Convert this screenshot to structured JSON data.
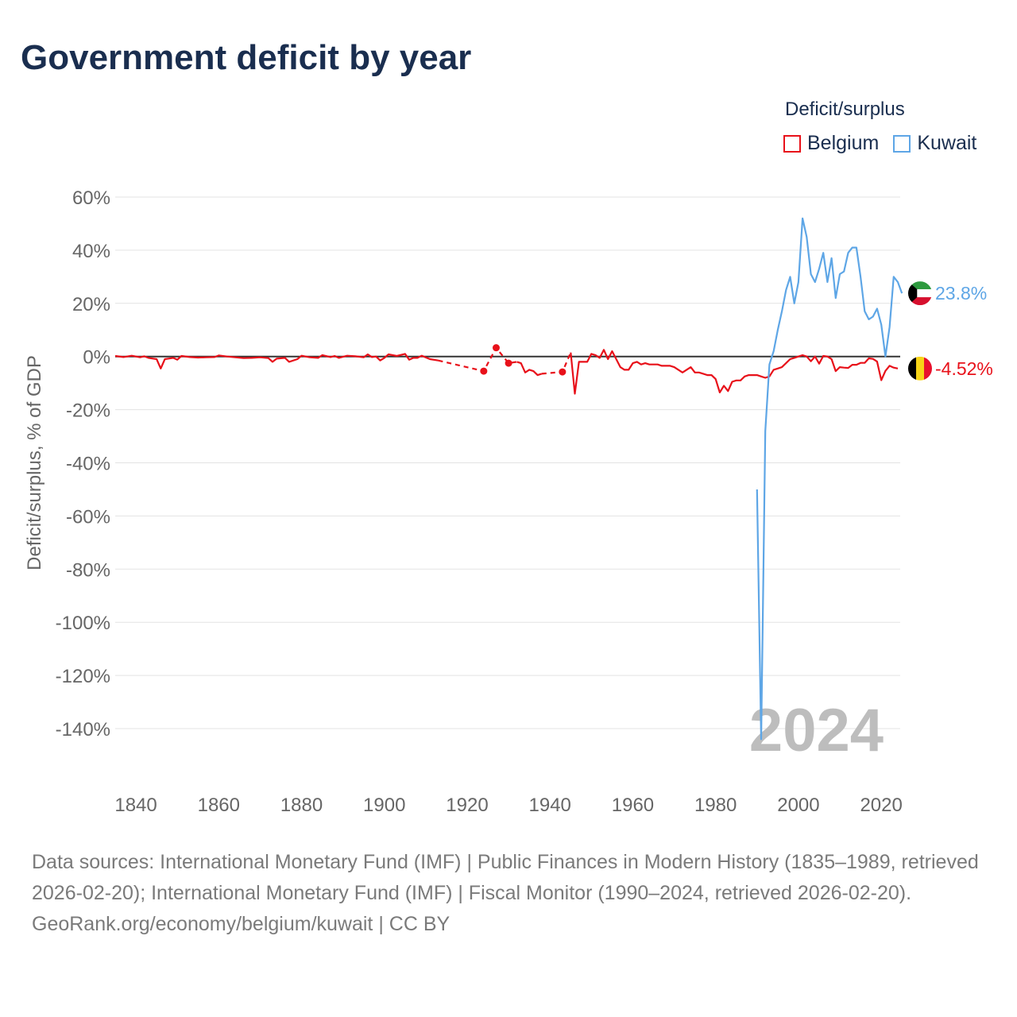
{
  "title": "Government deficit by year",
  "legend": {
    "title": "Deficit/surplus",
    "items": [
      {
        "label": "Belgium",
        "color": "#e8111a"
      },
      {
        "label": "Kuwait",
        "color": "#5ea6e6"
      }
    ]
  },
  "year_label": "2024",
  "footer": {
    "sources": "Data sources: International Monetary Fund (IMF) | Public Finances in Modern History (1835–1989, retrieved 2026-02-20); International Monetary Fund (IMF) | Fiscal Monitor (1990–2024, retrieved 2026-02-20).",
    "credit": "GeoRank.org/economy/belgium/kuwait | CC BY"
  },
  "chart_data": {
    "type": "line",
    "title": "Government deficit by year",
    "xlabel": "",
    "ylabel": "Deficit/surplus, % of GDP",
    "xlim": [
      1835,
      2024
    ],
    "ylim": [
      -150,
      60
    ],
    "x_ticks": [
      1840,
      1860,
      1880,
      1900,
      1920,
      1940,
      1960,
      1980,
      2000,
      2020
    ],
    "y_ticks": [
      60,
      40,
      20,
      0,
      -20,
      -40,
      -60,
      -80,
      -100,
      -120,
      -140
    ],
    "y_tick_labels": [
      "60%",
      "40%",
      "20%",
      "0%",
      "-20%",
      "-40%",
      "-60%",
      "-80%",
      "-100%",
      "-120%",
      "-140%"
    ],
    "grid": true,
    "series": [
      {
        "name": "Belgium",
        "color": "#e8111a",
        "end_label": "-4.52%",
        "segments": [
          {
            "style": "solid",
            "points": [
              [
                1835,
                0.2
              ],
              [
                1837,
                -0.2
              ],
              [
                1839,
                0.3
              ],
              [
                1841,
                -0.3
              ],
              [
                1842,
                0.1
              ],
              [
                1843,
                -0.5
              ],
              [
                1845,
                -1
              ],
              [
                1846,
                -4.5
              ],
              [
                1847,
                -1
              ],
              [
                1849,
                -0.5
              ],
              [
                1850,
                -1.2
              ],
              [
                1851,
                0.2
              ],
              [
                1853,
                -0.2
              ],
              [
                1855,
                -0.4
              ],
              [
                1857,
                -0.3
              ],
              [
                1859,
                -0.2
              ],
              [
                1860,
                0.4
              ],
              [
                1862,
                0
              ],
              [
                1864,
                -0.3
              ],
              [
                1866,
                -0.6
              ],
              [
                1868,
                -0.5
              ],
              [
                1870,
                -0.3
              ],
              [
                1872,
                -0.6
              ],
              [
                1873,
                -2
              ],
              [
                1874,
                -0.8
              ],
              [
                1876,
                -0.5
              ],
              [
                1877,
                -2
              ],
              [
                1879,
                -1
              ],
              [
                1880,
                0.3
              ],
              [
                1882,
                -0.3
              ],
              [
                1884,
                -0.5
              ],
              [
                1885,
                0.5
              ],
              [
                1887,
                -0.2
              ],
              [
                1888,
                0.2
              ],
              [
                1889,
                -0.5
              ],
              [
                1891,
                0.3
              ],
              [
                1893,
                0.1
              ],
              [
                1895,
                -0.3
              ],
              [
                1896,
                0.8
              ],
              [
                1897,
                -0.2
              ],
              [
                1898,
                0
              ],
              [
                1899,
                -1.5
              ],
              [
                1900,
                -0.5
              ],
              [
                1901,
                0.8
              ],
              [
                1903,
                0.2
              ],
              [
                1905,
                1
              ],
              [
                1906,
                -1.2
              ],
              [
                1907,
                -0.5
              ],
              [
                1908,
                -0.5
              ],
              [
                1909,
                0.3
              ],
              [
                1911,
                -1
              ],
              [
                1913,
                -1.5
              ]
            ]
          },
          {
            "style": "dashed",
            "points": [
              [
                1913,
                -1.5
              ],
              [
                1924,
                -5.5
              ],
              [
                1927,
                3.3
              ],
              [
                1930,
                -2.5
              ],
              [
                1932,
                -2
              ]
            ]
          },
          {
            "style": "solid",
            "points": [
              [
                1932,
                -2
              ],
              [
                1933,
                -2.5
              ],
              [
                1934,
                -6
              ],
              [
                1935,
                -5
              ],
              [
                1936,
                -5.5
              ],
              [
                1937,
                -7
              ],
              [
                1938,
                -6.5
              ]
            ]
          },
          {
            "style": "dashed",
            "points": [
              [
                1938,
                -6.5
              ],
              [
                1943,
                -5.8
              ],
              [
                1945,
                1.5
              ]
            ]
          },
          {
            "style": "solid",
            "points": [
              [
                1945,
                1.5
              ],
              [
                1946,
                -14
              ],
              [
                1947,
                -2
              ],
              [
                1948,
                -2
              ],
              [
                1949,
                -2
              ],
              [
                1950,
                1
              ],
              [
                1951,
                0.5
              ],
              [
                1952,
                -0.5
              ],
              [
                1953,
                2.5
              ],
              [
                1954,
                -1
              ],
              [
                1955,
                2
              ],
              [
                1956,
                -1
              ],
              [
                1957,
                -4
              ],
              [
                1958,
                -5
              ],
              [
                1959,
                -5
              ],
              [
                1960,
                -2.5
              ],
              [
                1961,
                -2
              ],
              [
                1962,
                -3
              ],
              [
                1963,
                -2.5
              ],
              [
                1964,
                -3
              ],
              [
                1965,
                -3
              ],
              [
                1966,
                -3
              ],
              [
                1967,
                -3.5
              ],
              [
                1968,
                -3.5
              ],
              [
                1969,
                -3.5
              ],
              [
                1970,
                -4
              ],
              [
                1971,
                -5
              ],
              [
                1972,
                -6
              ],
              [
                1973,
                -5
              ],
              [
                1974,
                -4
              ],
              [
                1975,
                -6
              ],
              [
                1976,
                -6
              ],
              [
                1977,
                -6.5
              ],
              [
                1978,
                -7
              ],
              [
                1979,
                -7
              ],
              [
                1980,
                -8.5
              ],
              [
                1981,
                -13.5
              ],
              [
                1982,
                -11
              ],
              [
                1983,
                -13
              ],
              [
                1984,
                -9.5
              ],
              [
                1985,
                -9
              ],
              [
                1986,
                -9
              ],
              [
                1987,
                -7.5
              ],
              [
                1988,
                -7
              ],
              [
                1989,
                -7
              ],
              [
                1990,
                -7
              ],
              [
                1991,
                -7.5
              ],
              [
                1992,
                -8
              ],
              [
                1993,
                -7.5
              ],
              [
                1994,
                -5
              ],
              [
                1995,
                -4.5
              ],
              [
                1996,
                -4
              ],
              [
                1997,
                -2.5
              ],
              [
                1998,
                -1
              ],
              [
                1999,
                -0.5
              ],
              [
                2000,
                0
              ],
              [
                2001,
                0.5
              ],
              [
                2002,
                0
              ],
              [
                2003,
                -1.8
              ],
              [
                2004,
                0
              ],
              [
                2005,
                -2.7
              ],
              [
                2006,
                0.2
              ],
              [
                2007,
                0
              ],
              [
                2008,
                -1
              ],
              [
                2009,
                -5.5
              ],
              [
                2010,
                -4
              ],
              [
                2011,
                -4.2
              ],
              [
                2012,
                -4.3
              ],
              [
                2013,
                -3.1
              ],
              [
                2014,
                -3.1
              ],
              [
                2015,
                -2.4
              ],
              [
                2016,
                -2.4
              ],
              [
                2017,
                -0.7
              ],
              [
                2018,
                -0.9
              ],
              [
                2019,
                -1.9
              ],
              [
                2020,
                -8.9
              ],
              [
                2021,
                -5.4
              ],
              [
                2022,
                -3.5
              ],
              [
                2023,
                -4.2
              ],
              [
                2024,
                -4.52
              ]
            ]
          }
        ],
        "markers": [
          [
            1924,
            -5.5
          ],
          [
            1927,
            3.3
          ],
          [
            1930,
            -2.5
          ],
          [
            1943,
            -5.8
          ]
        ]
      },
      {
        "name": "Kuwait",
        "color": "#5ea6e6",
        "end_label": "23.8%",
        "segments": [
          {
            "style": "solid",
            "points": [
              [
                1990,
                -50
              ],
              [
                1991,
                -144
              ],
              [
                1992,
                -28
              ],
              [
                1993,
                -3
              ],
              [
                1994,
                2
              ],
              [
                1995,
                10
              ],
              [
                1996,
                17
              ],
              [
                1997,
                25
              ],
              [
                1998,
                30
              ],
              [
                1999,
                20
              ],
              [
                2000,
                28
              ],
              [
                2001,
                52
              ],
              [
                2002,
                45
              ],
              [
                2003,
                31
              ],
              [
                2004,
                28
              ],
              [
                2005,
                33
              ],
              [
                2006,
                39
              ],
              [
                2007,
                28
              ],
              [
                2008,
                37
              ],
              [
                2009,
                22
              ],
              [
                2010,
                31
              ],
              [
                2011,
                32
              ],
              [
                2012,
                39
              ],
              [
                2013,
                41
              ],
              [
                2014,
                41
              ],
              [
                2015,
                30
              ],
              [
                2016,
                17
              ],
              [
                2017,
                14
              ],
              [
                2018,
                15
              ],
              [
                2019,
                18
              ],
              [
                2020,
                12
              ],
              [
                2021,
                0
              ],
              [
                2022,
                11
              ],
              [
                2023,
                30
              ],
              [
                2024,
                28
              ],
              [
                2025,
                23.8
              ]
            ]
          }
        ],
        "markers": []
      }
    ]
  }
}
